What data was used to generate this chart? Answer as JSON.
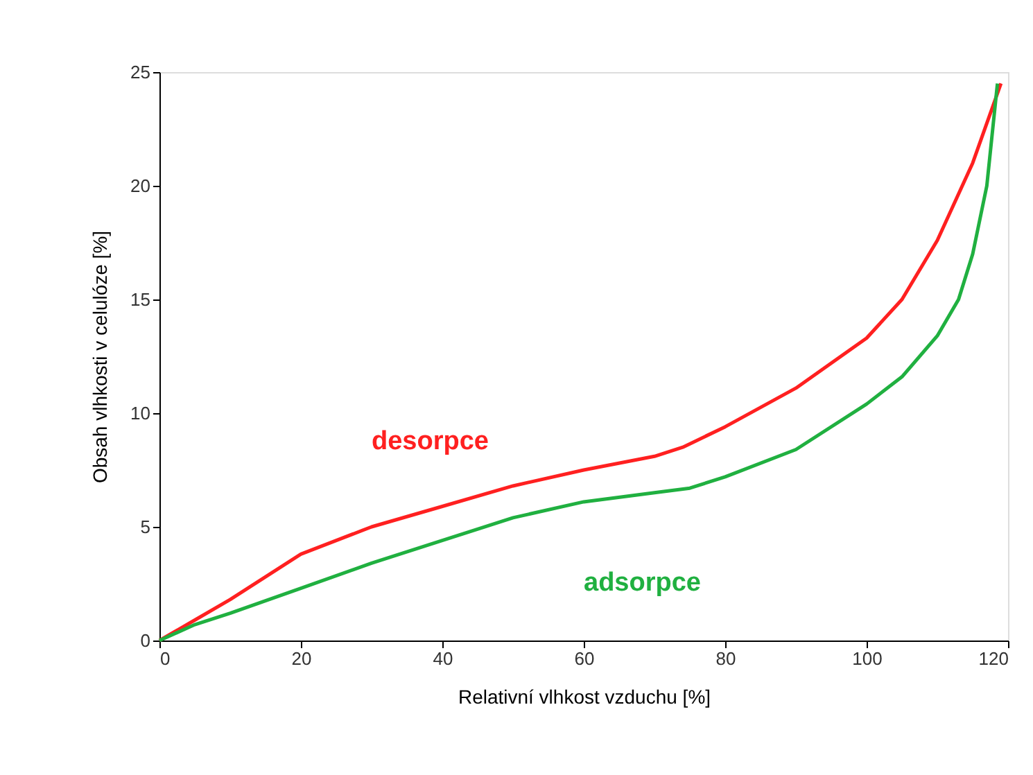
{
  "chart_data": {
    "type": "line",
    "xlabel": "Relativní vlhkost vzduchu  [%]",
    "ylabel": "Obsah vlhkosti v celulóze  [%]",
    "xlim": [
      0,
      120
    ],
    "xticks": [
      0,
      20,
      40,
      60,
      80,
      100,
      120
    ],
    "ylim": [
      0,
      25
    ],
    "yticks": [
      0,
      5,
      10,
      15,
      20,
      25
    ],
    "grid": false,
    "legend": false,
    "marker": "none",
    "line_style": "solid",
    "series": [
      {
        "name": "desorpce",
        "color": "#ff2020",
        "x": [
          0,
          5,
          10,
          20,
          30,
          40,
          50,
          60,
          70,
          74,
          80,
          90,
          100,
          105,
          110,
          115,
          119
        ],
        "values": [
          0,
          0.9,
          1.8,
          3.8,
          5.0,
          5.9,
          6.8,
          7.5,
          8.1,
          8.5,
          9.4,
          11.1,
          13.3,
          15.0,
          17.6,
          21.0,
          24.5
        ]
      },
      {
        "name": "adsorpce",
        "color": "#20b040",
        "x": [
          0,
          5,
          10,
          20,
          30,
          40,
          50,
          60,
          70,
          75,
          80,
          90,
          100,
          105,
          110,
          113,
          115,
          117,
          118.5
        ],
        "values": [
          0,
          0.7,
          1.2,
          2.3,
          3.4,
          4.4,
          5.4,
          6.1,
          6.5,
          6.7,
          7.2,
          8.4,
          10.4,
          11.6,
          13.4,
          15.0,
          17.0,
          20.0,
          24.5
        ]
      }
    ]
  }
}
